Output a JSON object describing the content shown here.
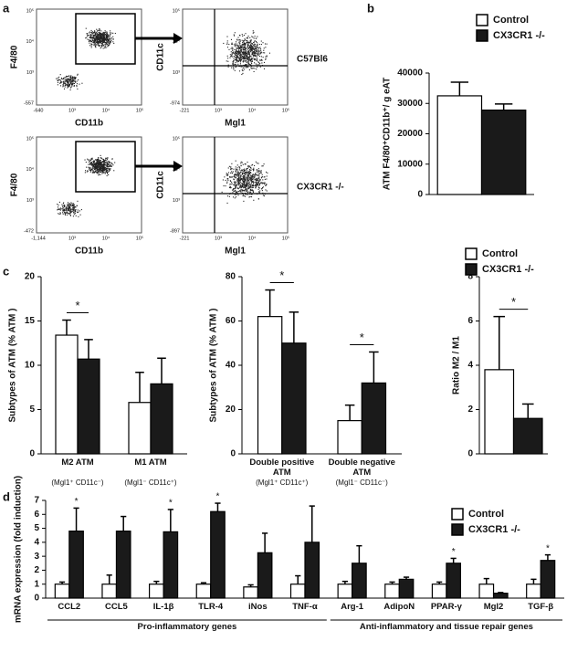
{
  "flow_cytometry": {
    "panel_label": "a",
    "row_labels": [
      "C57Bl6",
      "CX3CR1 -/-"
    ],
    "plots": [
      {
        "x_label": "CD11b",
        "y_label": "F4/80",
        "xtick_labels": [
          "-640",
          "10³",
          "10⁴",
          "10⁵"
        ],
        "ytick_labels": [
          "-557",
          "10³",
          "10⁴",
          "10⁵"
        ]
      },
      {
        "x_label": "Mgl1",
        "y_label": "CD11c",
        "xtick_labels": [
          "-221",
          "10³",
          "10⁴",
          "10⁵"
        ],
        "ytick_labels": [
          "-974",
          "10³",
          "10⁴",
          "10⁵"
        ]
      },
      {
        "x_label": "CD11b",
        "y_label": "F4/80",
        "xtick_labels": [
          "-1,144",
          "10³",
          "10⁴",
          "10⁵"
        ],
        "ytick_labels": [
          "-472",
          "10³",
          "10⁴",
          "10⁵"
        ]
      },
      {
        "x_label": "Mgl1",
        "y_label": "CD11c",
        "xtick_labels": [
          "-221",
          "10³",
          "10⁴",
          "10⁵"
        ],
        "ytick_labels": [
          "-897",
          "10³",
          "10⁴",
          "10⁵"
        ]
      }
    ]
  },
  "chart_data": [
    {
      "type": "bar",
      "panel_label": "b",
      "y_label": "ATM F4/80⁺CD11b⁺/ g eAT",
      "categories": [
        null
      ],
      "legend": true,
      "series": [
        {
          "name": "Control",
          "color": "#ffffff",
          "values": [
            32500
          ],
          "errors": [
            4500
          ]
        },
        {
          "name": "CX3CR1 -/-",
          "color": "#1a1a1a",
          "values": [
            27800
          ],
          "errors": [
            2000
          ]
        }
      ],
      "ylim": [
        0,
        40000
      ],
      "yticks": [
        0,
        10000,
        20000,
        30000,
        40000
      ]
    },
    {
      "type": "bar",
      "panel_label": "c",
      "y_label": "Subtypes of ATM (% ATM )",
      "categories": [
        "M2 ATM",
        "M1 ATM"
      ],
      "category_sublabels": [
        "(Mgl1⁺ CD11c⁻)",
        "(Mgl1⁻ CD11c⁺)"
      ],
      "series": [
        {
          "name": "Control",
          "color": "#ffffff",
          "values": [
            13.4,
            5.8
          ],
          "errors": [
            1.7,
            3.4
          ]
        },
        {
          "name": "CX3CR1 -/-",
          "color": "#1a1a1a",
          "values": [
            10.7,
            7.9
          ],
          "errors": [
            2.2,
            2.9
          ]
        }
      ],
      "ylim": [
        0,
        20
      ],
      "yticks": [
        0,
        5,
        10,
        15,
        20
      ],
      "annotations": [
        {
          "text": "*",
          "category": 0
        }
      ]
    },
    {
      "type": "bar",
      "y_label": "Subtypes of ATM (% ATM )",
      "categories": [
        "Double positive ATM",
        "Double negative ATM"
      ],
      "category_sublabels": [
        "(Mgl1⁺ CD11c⁺)",
        "(Mgl1⁻ CD11c⁻)"
      ],
      "series": [
        {
          "name": "Control",
          "color": "#ffffff",
          "values": [
            62,
            15
          ],
          "errors": [
            12,
            7
          ]
        },
        {
          "name": "CX3CR1 -/-",
          "color": "#1a1a1a",
          "values": [
            50,
            32
          ],
          "errors": [
            14,
            14
          ]
        }
      ],
      "ylim": [
        0,
        80
      ],
      "yticks": [
        0,
        20,
        40,
        60,
        80
      ],
      "annotations": [
        {
          "text": "*",
          "category": 0
        },
        {
          "text": "*",
          "category": 1
        }
      ]
    },
    {
      "type": "bar",
      "y_label": "Ratio M2 / M1",
      "categories": [
        null
      ],
      "legend": true,
      "series": [
        {
          "name": "Control",
          "color": "#ffffff",
          "values": [
            3.8
          ],
          "errors": [
            2.4
          ]
        },
        {
          "name": "CX3CR1 -/-",
          "color": "#1a1a1a",
          "values": [
            1.6
          ],
          "errors": [
            0.65
          ]
        }
      ],
      "ylim": [
        0,
        8
      ],
      "yticks": [
        0,
        2,
        4,
        6,
        8
      ],
      "annotations": [
        {
          "text": "*",
          "category": 0
        }
      ]
    },
    {
      "type": "bar",
      "panel_label": "d",
      "y_label": "mRNA expression (fold induction)",
      "legend": true,
      "categories": [
        "CCL2",
        "CCL5",
        "IL-1β",
        "TLR-4",
        "iNos",
        "TNF-α",
        "Arg-1",
        "AdipoN",
        "PPAR-γ",
        "Mgl2",
        "TGF-β"
      ],
      "series": [
        {
          "name": "Control",
          "color": "#ffffff",
          "values": [
            1,
            1,
            1,
            1,
            0.8,
            1,
            1,
            1,
            1,
            1,
            1
          ],
          "errors": [
            0.15,
            0.65,
            0.2,
            0.1,
            0.15,
            0.6,
            0.2,
            0.15,
            0.15,
            0.4,
            0.35
          ]
        },
        {
          "name": "CX3CR1 -/-",
          "color": "#1a1a1a",
          "values": [
            4.8,
            4.8,
            4.75,
            6.2,
            3.25,
            4.0,
            2.5,
            1.35,
            2.5,
            0.35,
            2.7
          ],
          "errors": [
            1.65,
            1.05,
            1.6,
            0.6,
            1.4,
            2.6,
            1.25,
            0.15,
            0.35,
            0.05,
            0.4
          ]
        }
      ],
      "ylim": [
        0,
        7
      ],
      "yticks": [
        0,
        1,
        2,
        3,
        4,
        5,
        6,
        7
      ],
      "annotations": [
        {
          "text": "*",
          "category": 0
        },
        {
          "text": "*",
          "category": 2
        },
        {
          "text": "*",
          "category": 3
        },
        {
          "text": "*",
          "category": 8
        },
        {
          "text": "*",
          "category": 10
        }
      ],
      "groups": [
        {
          "label": "Pro-inflammatory genes",
          "start": 0,
          "end": 5
        },
        {
          "label": "Anti-inflammatory and tissue repair genes",
          "start": 6,
          "end": 10
        }
      ]
    }
  ]
}
